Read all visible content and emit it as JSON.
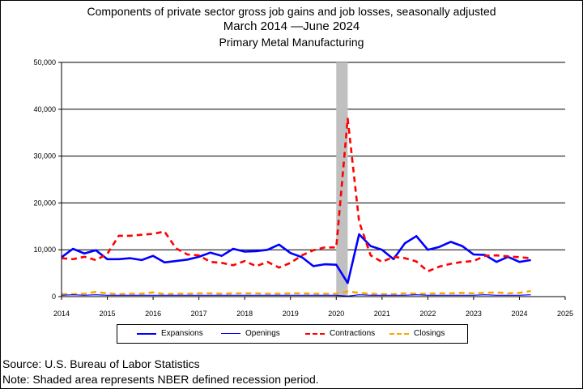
{
  "chart_data": {
    "type": "line",
    "title": "Components of private sector gross job gains and job losses, seasonally adjusted",
    "subtitle_dates": "March 2014 —June 2024",
    "subtitle_industry": "Primary Metal Manufacturing",
    "xlabel": "",
    "ylabel": "",
    "xlim": [
      2014,
      2025
    ],
    "ylim": [
      0,
      50000
    ],
    "x_ticks": [
      "2014",
      "2015",
      "2016",
      "2017",
      "2018",
      "2019",
      "2020",
      "2021",
      "2022",
      "2023",
      "2024",
      "2025"
    ],
    "y_ticks": [
      "0",
      "10,000",
      "20,000",
      "30,000",
      "40,000",
      "50,000"
    ],
    "y_tick_values": [
      0,
      10000,
      20000,
      30000,
      40000,
      50000
    ],
    "grid": "horizontal",
    "legend_position": "bottom",
    "recession_shading": {
      "x_start": 2020.0,
      "x_end": 2020.25,
      "color": "#c0c0c0"
    },
    "x": [
      2014.0,
      2014.25,
      2014.5,
      2014.75,
      2015.0,
      2015.25,
      2015.5,
      2015.75,
      2016.0,
      2016.25,
      2016.5,
      2016.75,
      2017.0,
      2017.25,
      2017.5,
      2017.75,
      2018.0,
      2018.25,
      2018.5,
      2018.75,
      2019.0,
      2019.25,
      2019.5,
      2019.75,
      2020.0,
      2020.25,
      2020.5,
      2020.75,
      2021.0,
      2021.25,
      2021.5,
      2021.75,
      2022.0,
      2022.25,
      2022.5,
      2022.75,
      2023.0,
      2023.25,
      2023.5,
      2023.75,
      2024.0,
      2024.25
    ],
    "series": [
      {
        "name": "Expansions",
        "color": "#0000ff",
        "style": "solid",
        "width": 2.6,
        "values": [
          8400,
          10200,
          9200,
          9900,
          8000,
          8000,
          8200,
          7800,
          8700,
          7300,
          7600,
          7900,
          8500,
          9400,
          8700,
          10200,
          9600,
          9700,
          10000,
          11100,
          9300,
          8400,
          6500,
          6900,
          6800,
          2900,
          13300,
          10800,
          10000,
          8000,
          11400,
          12900,
          10000,
          10600,
          11700,
          10800,
          9000,
          8900,
          7400,
          8500,
          7400,
          7800
        ]
      },
      {
        "name": "Openings",
        "color": "#0000ff",
        "style": "solid",
        "width": 1.2,
        "values": [
          300,
          400,
          300,
          400,
          300,
          300,
          300,
          300,
          300,
          300,
          300,
          300,
          300,
          300,
          300,
          300,
          300,
          300,
          300,
          300,
          300,
          300,
          300,
          300,
          300,
          100,
          400,
          300,
          300,
          300,
          300,
          400,
          300,
          300,
          300,
          300,
          300,
          400,
          300,
          300,
          300,
          400
        ]
      },
      {
        "name": "Contractions",
        "color": "#ff0000",
        "style": "dashed",
        "width": 2.6,
        "values": [
          8200,
          8000,
          8500,
          7800,
          9100,
          13000,
          13000,
          13200,
          13400,
          13900,
          10300,
          9000,
          8800,
          7400,
          7200,
          6700,
          7600,
          6500,
          7400,
          6200,
          7200,
          8800,
          9900,
          10500,
          10500,
          38000,
          16000,
          8800,
          7400,
          8500,
          8200,
          7500,
          5400,
          6400,
          7000,
          7400,
          7600,
          8700,
          8800,
          8600,
          8400,
          8200
        ]
      },
      {
        "name": "Closings",
        "color": "#ffa500",
        "style": "dashed",
        "width": 2.6,
        "values": [
          500,
          500,
          600,
          1000,
          700,
          500,
          600,
          600,
          900,
          500,
          600,
          600,
          700,
          700,
          600,
          700,
          700,
          700,
          600,
          600,
          700,
          700,
          600,
          600,
          600,
          1100,
          800,
          600,
          500,
          500,
          700,
          600,
          600,
          700,
          700,
          800,
          700,
          800,
          900,
          700,
          800,
          1200
        ]
      }
    ],
    "source": "Source: U.S. Bureau of Labor Statistics",
    "note": "Note: Shaded area represents NBER defined recession period."
  }
}
